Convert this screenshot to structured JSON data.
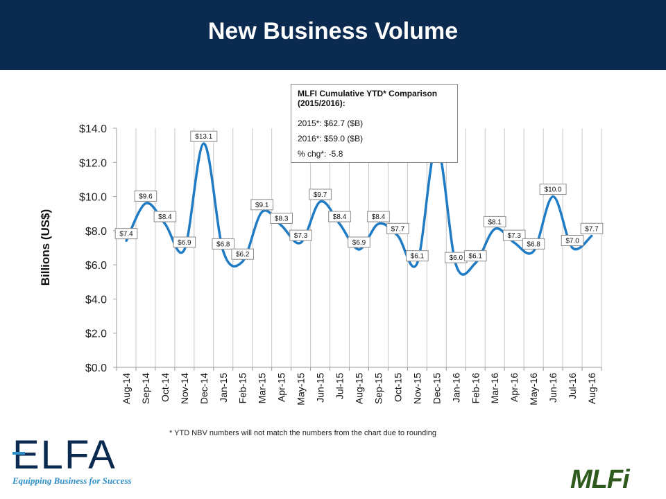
{
  "header": {
    "title": "New Business Volume"
  },
  "stats_box": {
    "title": "MLFI Cumulative YTD* Comparison (2015/2016):",
    "line_2015": "2015*: $62.7 ($B)",
    "line_2016": "2016*: $59.0  ($B)",
    "line_chg": "% chg*: -5.8"
  },
  "footnote": "*  YTD NBV numbers will not match the numbers from the chart due to rounding",
  "logos": {
    "elfa_word": "ELFA",
    "elfa_tagline": "Equipping Business for Success",
    "mlfi_word": "MLFi"
  },
  "colors": {
    "header_bg": "#0b2a4f",
    "series_line": "#1f7bc4",
    "elfa_accent": "#2e8fc9",
    "mlfi_green": "#2f5a1e"
  },
  "chart_data": {
    "type": "line",
    "ylabel": "Billions (US$)",
    "xlabel": "",
    "ylim": [
      0,
      14
    ],
    "ytick_step": 2,
    "ytick_labels": [
      "$0.0",
      "$2.0",
      "$4.0",
      "$6.0",
      "$8.0",
      "$10.0",
      "$12.0",
      "$14.0"
    ],
    "grid": "vertical",
    "legend": "none",
    "categories": [
      "Aug-14",
      "Sep-14",
      "Oct-14",
      "Nov-14",
      "Dec-14",
      "Jan-15",
      "Feb-15",
      "Mar-15",
      "Apr-15",
      "May-15",
      "Jun-15",
      "Jul-15",
      "Aug-15",
      "Sep-15",
      "Oct-15",
      "Nov-15",
      "Dec-15",
      "Jan-16",
      "Feb-16",
      "Mar-16",
      "Apr-16",
      "May-16",
      "Jun-16",
      "Jul-16",
      "Aug-16"
    ],
    "values": [
      7.4,
      9.6,
      8.4,
      6.9,
      13.1,
      6.8,
      6.2,
      9.1,
      8.3,
      7.3,
      9.7,
      8.4,
      6.9,
      8.4,
      7.7,
      6.1,
      13.0,
      6.0,
      6.1,
      8.1,
      7.3,
      6.8,
      10.0,
      7.0,
      7.7
    ],
    "data_labels": [
      "$7.4",
      "$9.6",
      "$8.4",
      "$6.9",
      "$13.1",
      "$6.8",
      "$6.2",
      "$9.1",
      "$8.3",
      "$7.3",
      "$9.7",
      "$8.4",
      "$6.9",
      "$8.4",
      "$7.7",
      "$6.1",
      "",
      "$6.0",
      "$6.1",
      "$8.1",
      "$7.3",
      "$6.8",
      "$10.0",
      "$7.0",
      "$7.7"
    ]
  }
}
